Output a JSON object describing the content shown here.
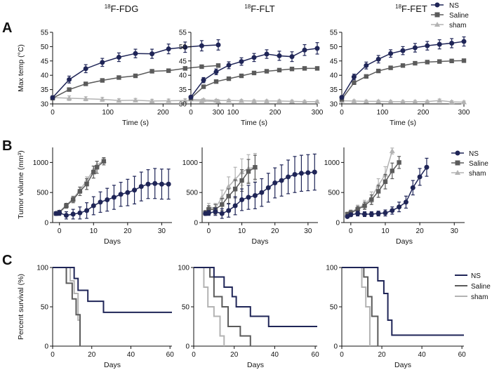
{
  "colors": {
    "ns": "#1f2557",
    "saline": "#5b5b5b",
    "sham": "#b3b3b3",
    "axis": "#111111"
  },
  "panel_labels": [
    "A",
    "B",
    "C"
  ],
  "column_titles": [
    {
      "sup": "18",
      "main": "F-FDG"
    },
    {
      "sup": "18",
      "main": "F-FLT"
    },
    {
      "sup": "18",
      "main": "F-FET"
    }
  ],
  "legend": {
    "ns": "NS",
    "saline": "Saline",
    "sham": "sham"
  },
  "chart_data": [
    {
      "id": "A1",
      "type": "line",
      "xlabel": "Time (s)",
      "ylabel": "Max temp (°C)",
      "xlim": [
        0,
        300
      ],
      "ylim": [
        30,
        55
      ],
      "xticks": [
        0,
        100,
        200,
        300
      ],
      "yticks": [
        30,
        35,
        40,
        45,
        50,
        55
      ],
      "series": [
        {
          "name": "NS",
          "key": "ns",
          "x": [
            0,
            30,
            60,
            90,
            120,
            150,
            180,
            210,
            240,
            270,
            300
          ],
          "y": [
            32.2,
            38.5,
            42.3,
            44.5,
            46.3,
            47.6,
            47.5,
            49.2,
            49.8,
            50.3,
            50.6
          ],
          "err": [
            0.5,
            1.2,
            1.4,
            1.4,
            1.5,
            1.5,
            1.6,
            1.7,
            1.8,
            1.8,
            1.8
          ]
        },
        {
          "name": "Saline",
          "key": "saline",
          "x": [
            0,
            30,
            60,
            90,
            120,
            150,
            180,
            210,
            240,
            270,
            300
          ],
          "y": [
            32.0,
            35.0,
            37.0,
            38.2,
            39.2,
            39.8,
            41.4,
            41.6,
            42.4,
            43.0,
            43.4
          ],
          "err": [
            0.3,
            0.5,
            0.5,
            0.5,
            0.5,
            0.5,
            0.5,
            0.5,
            0.5,
            0.5,
            0.5
          ]
        },
        {
          "name": "sham",
          "key": "sham",
          "x": [
            0,
            30,
            60,
            90,
            120,
            150,
            180,
            210,
            240,
            270,
            300
          ],
          "y": [
            32.2,
            32.0,
            31.8,
            31.6,
            31.2,
            31.3,
            31.0,
            31.1,
            31.2,
            31.0,
            30.9
          ],
          "err": [
            0.8,
            0.8,
            0.7,
            0.7,
            0.6,
            0.6,
            0.6,
            0.6,
            0.6,
            0.5,
            0.5
          ]
        }
      ]
    },
    {
      "id": "A2",
      "type": "line",
      "xlabel": "Time (s)",
      "ylabel": "",
      "xlim": [
        0,
        300
      ],
      "ylim": [
        30,
        55
      ],
      "xticks": [
        0,
        100,
        200,
        300
      ],
      "yticks": [
        30,
        35,
        40,
        45,
        50,
        55
      ],
      "series": [
        {
          "name": "NS",
          "key": "ns",
          "x": [
            0,
            30,
            60,
            90,
            120,
            150,
            180,
            210,
            240,
            270,
            300
          ],
          "y": [
            32.4,
            38.3,
            41.2,
            43.5,
            44.8,
            46.2,
            47.4,
            46.8,
            46.5,
            48.8,
            49.4
          ],
          "err": [
            0.5,
            0.9,
            1.0,
            1.2,
            1.3,
            1.4,
            1.5,
            1.6,
            1.7,
            1.9,
            2.0
          ]
        },
        {
          "name": "Saline",
          "key": "saline",
          "x": [
            0,
            30,
            60,
            90,
            120,
            150,
            180,
            210,
            240,
            270,
            300
          ],
          "y": [
            32.0,
            36.0,
            37.8,
            38.8,
            39.8,
            40.8,
            41.4,
            41.8,
            42.2,
            42.4,
            42.4
          ],
          "err": [
            0.3,
            0.5,
            0.5,
            0.5,
            0.5,
            0.5,
            0.5,
            0.5,
            0.5,
            0.5,
            0.5
          ]
        },
        {
          "name": "sham",
          "key": "sham",
          "x": [
            0,
            30,
            60,
            90,
            120,
            150,
            180,
            210,
            240,
            270,
            300
          ],
          "y": [
            31.6,
            31.4,
            31.2,
            31.2,
            31.1,
            31.0,
            31.0,
            31.0,
            30.9,
            30.8,
            30.8
          ],
          "err": [
            0.4,
            0.4,
            0.4,
            0.4,
            0.4,
            0.4,
            0.4,
            0.4,
            0.4,
            0.4,
            0.4
          ]
        }
      ]
    },
    {
      "id": "A3",
      "type": "line",
      "xlabel": "Time (s)",
      "ylabel": "",
      "xlim": [
        0,
        300
      ],
      "ylim": [
        30,
        55
      ],
      "xticks": [
        0,
        100,
        200,
        300
      ],
      "yticks": [
        30,
        35,
        40,
        45,
        50,
        55
      ],
      "series": [
        {
          "name": "NS",
          "key": "ns",
          "x": [
            0,
            30,
            60,
            90,
            120,
            150,
            180,
            210,
            240,
            270,
            300
          ],
          "y": [
            32.3,
            39.4,
            43.4,
            45.6,
            47.6,
            48.6,
            49.6,
            50.3,
            50.8,
            51.2,
            51.8
          ],
          "err": [
            0.5,
            1.0,
            1.2,
            1.3,
            1.3,
            1.4,
            1.5,
            1.5,
            1.6,
            1.6,
            1.6
          ]
        },
        {
          "name": "Saline",
          "key": "saline",
          "x": [
            0,
            30,
            60,
            90,
            120,
            150,
            180,
            210,
            240,
            270,
            300
          ],
          "y": [
            31.6,
            37.4,
            39.6,
            41.5,
            42.6,
            43.4,
            44.2,
            44.6,
            44.8,
            45.0,
            45.1
          ],
          "err": [
            0.4,
            0.5,
            0.5,
            0.5,
            0.5,
            0.5,
            0.5,
            0.5,
            0.5,
            0.5,
            0.5
          ]
        },
        {
          "name": "sham",
          "key": "sham",
          "x": [
            0,
            30,
            60,
            90,
            120,
            150,
            180,
            210,
            240,
            270,
            300
          ],
          "y": [
            31.1,
            31.0,
            30.9,
            30.9,
            30.8,
            30.8,
            30.8,
            30.8,
            31.2,
            30.7,
            30.6
          ],
          "err": [
            0.4,
            0.4,
            0.4,
            0.4,
            0.4,
            0.4,
            0.4,
            0.4,
            0.5,
            0.4,
            0.4
          ]
        }
      ]
    },
    {
      "id": "B1",
      "type": "line",
      "xlabel": "Days",
      "ylabel": "Tumor volume (mm³)",
      "xlim": [
        -2,
        33
      ],
      "ylim": [
        0,
        1250
      ],
      "xticks": [
        0,
        10,
        20,
        30
      ],
      "yticks": [
        0,
        500,
        1000
      ],
      "series": [
        {
          "name": "NS",
          "key": "ns",
          "x": [
            -1,
            0,
            2,
            4,
            6,
            8,
            10,
            12,
            14,
            16,
            18,
            20,
            22,
            24,
            26,
            28,
            30,
            32
          ],
          "y": [
            150,
            160,
            120,
            140,
            160,
            200,
            280,
            340,
            380,
            420,
            470,
            500,
            540,
            600,
            640,
            650,
            640,
            640
          ],
          "err": [
            30,
            40,
            60,
            80,
            100,
            130,
            150,
            170,
            190,
            200,
            200,
            220,
            230,
            240,
            240,
            250,
            250,
            250
          ]
        },
        {
          "name": "Saline",
          "key": "saline",
          "x": [
            -1,
            0,
            2,
            4,
            6,
            8,
            10,
            11,
            13
          ],
          "y": [
            150,
            170,
            280,
            380,
            520,
            640,
            840,
            920,
            1020
          ],
          "err": [
            30,
            30,
            40,
            50,
            70,
            90,
            100,
            100,
            60
          ]
        },
        {
          "name": "sham",
          "key": "sham",
          "x": [
            -1,
            0,
            2,
            4,
            6,
            8,
            10,
            11,
            13
          ],
          "y": [
            160,
            180,
            290,
            400,
            540,
            700,
            880,
            960,
            1030
          ],
          "err": [
            20,
            20,
            30,
            40,
            50,
            60,
            60,
            60,
            40
          ]
        }
      ]
    },
    {
      "id": "B2",
      "type": "line",
      "xlabel": "Days",
      "ylabel": "",
      "xlim": [
        -2,
        33
      ],
      "ylim": [
        0,
        1250
      ],
      "xticks": [
        0,
        10,
        20,
        30
      ],
      "yticks": [
        0,
        500,
        1000
      ],
      "series": [
        {
          "name": "NS",
          "key": "ns",
          "x": [
            -1,
            0,
            2,
            4,
            6,
            8,
            10,
            12,
            14,
            16,
            18,
            20,
            22,
            24,
            26,
            28,
            30,
            32
          ],
          "y": [
            150,
            160,
            180,
            150,
            200,
            280,
            380,
            420,
            450,
            500,
            580,
            660,
            700,
            760,
            800,
            820,
            830,
            840
          ],
          "err": [
            30,
            40,
            60,
            80,
            110,
            150,
            180,
            200,
            220,
            230,
            240,
            250,
            260,
            280,
            300,
            300,
            300,
            300
          ]
        },
        {
          "name": "Saline",
          "key": "saline",
          "x": [
            -1,
            0,
            2,
            4,
            6,
            8,
            10,
            12,
            14
          ],
          "y": [
            160,
            220,
            220,
            300,
            440,
            560,
            700,
            850,
            920
          ],
          "err": [
            40,
            60,
            80,
            100,
            120,
            150,
            180,
            200,
            200
          ]
        },
        {
          "name": "sham",
          "key": "sham",
          "x": [
            -1,
            0,
            2,
            4,
            6,
            8,
            10,
            12,
            14
          ],
          "y": [
            160,
            260,
            240,
            420,
            600,
            720,
            840,
            900,
            920
          ],
          "err": [
            40,
            60,
            80,
            120,
            160,
            200,
            220,
            230,
            230
          ]
        }
      ]
    },
    {
      "id": "B3",
      "type": "line",
      "xlabel": "Days",
      "ylabel": "",
      "xlim": [
        -2,
        33
      ],
      "ylim": [
        0,
        1250
      ],
      "xticks": [
        0,
        10,
        20,
        30
      ],
      "yticks": [
        0,
        500,
        1000
      ],
      "series": [
        {
          "name": "NS",
          "key": "ns",
          "x": [
            -1,
            0,
            2,
            4,
            6,
            8,
            10,
            12,
            14,
            16,
            18,
            20,
            22
          ],
          "y": [
            100,
            130,
            150,
            140,
            140,
            150,
            160,
            200,
            260,
            340,
            580,
            760,
            920
          ],
          "err": [
            20,
            30,
            40,
            40,
            40,
            40,
            50,
            60,
            80,
            100,
            120,
            140,
            150
          ]
        },
        {
          "name": "Saline",
          "key": "saline",
          "x": [
            -1,
            0,
            2,
            4,
            6,
            8,
            10,
            12,
            14
          ],
          "y": [
            140,
            160,
            220,
            280,
            380,
            520,
            680,
            860,
            1000
          ],
          "err": [
            30,
            40,
            50,
            60,
            80,
            100,
            120,
            130,
            100
          ]
        },
        {
          "name": "sham",
          "key": "sham",
          "x": [
            -1,
            0,
            2,
            4,
            6,
            8,
            10,
            12
          ],
          "y": [
            140,
            170,
            240,
            300,
            420,
            620,
            800,
            1190
          ],
          "err": [
            30,
            40,
            50,
            70,
            90,
            110,
            130,
            50
          ]
        }
      ]
    },
    {
      "id": "C1",
      "type": "line",
      "step": true,
      "xlabel": "Days",
      "ylabel": "Percent survival (%)",
      "xlim": [
        0,
        61
      ],
      "ylim": [
        0,
        100
      ],
      "xticks": [
        0,
        20,
        40,
        60
      ],
      "yticks": [
        0,
        50,
        100
      ],
      "series": [
        {
          "name": "NS",
          "key": "ns",
          "x": [
            0,
            11,
            13,
            18,
            26,
            61
          ],
          "y": [
            100,
            86,
            71,
            57,
            43,
            43
          ]
        },
        {
          "name": "Saline",
          "key": "saline",
          "x": [
            0,
            7,
            10,
            12,
            14
          ],
          "y": [
            100,
            80,
            60,
            40,
            0
          ]
        },
        {
          "name": "sham",
          "key": "sham",
          "x": [
            0,
            9,
            11,
            13,
            14
          ],
          "y": [
            100,
            83,
            67,
            33,
            0
          ]
        }
      ]
    },
    {
      "id": "C2",
      "type": "line",
      "step": true,
      "xlabel": "Days",
      "ylabel": "",
      "xlim": [
        0,
        61
      ],
      "ylim": [
        0,
        100
      ],
      "xticks": [
        0,
        20,
        40,
        60
      ],
      "yticks": [
        0,
        50,
        100
      ],
      "series": [
        {
          "name": "NS",
          "key": "ns",
          "x": [
            0,
            10,
            15,
            19,
            21,
            28,
            37,
            61
          ],
          "y": [
            100,
            88,
            75,
            63,
            50,
            38,
            25,
            25
          ]
        },
        {
          "name": "Saline",
          "key": "saline",
          "x": [
            0,
            8,
            10,
            14,
            17,
            23,
            28
          ],
          "y": [
            100,
            88,
            63,
            50,
            25,
            13,
            0
          ]
        },
        {
          "name": "sham",
          "key": "sham",
          "x": [
            0,
            5,
            7,
            10,
            13,
            15
          ],
          "y": [
            100,
            75,
            50,
            38,
            13,
            0
          ]
        }
      ]
    },
    {
      "id": "C3",
      "type": "line",
      "step": true,
      "xlabel": "Days",
      "ylabel": "",
      "xlim": [
        0,
        61
      ],
      "ylim": [
        0,
        100
      ],
      "xticks": [
        0,
        20,
        40,
        60
      ],
      "yticks": [
        0,
        50,
        100
      ],
      "series": [
        {
          "name": "NS",
          "key": "ns",
          "x": [
            0,
            18,
            21,
            23,
            25,
            61
          ],
          "y": [
            100,
            83,
            67,
            33,
            14,
            14
          ]
        },
        {
          "name": "Saline",
          "key": "saline",
          "x": [
            0,
            11,
            13,
            15,
            18
          ],
          "y": [
            100,
            88,
            63,
            38,
            0
          ]
        },
        {
          "name": "sham",
          "key": "sham",
          "x": [
            0,
            10,
            12,
            14
          ],
          "y": [
            100,
            75,
            50,
            0
          ]
        }
      ]
    }
  ]
}
